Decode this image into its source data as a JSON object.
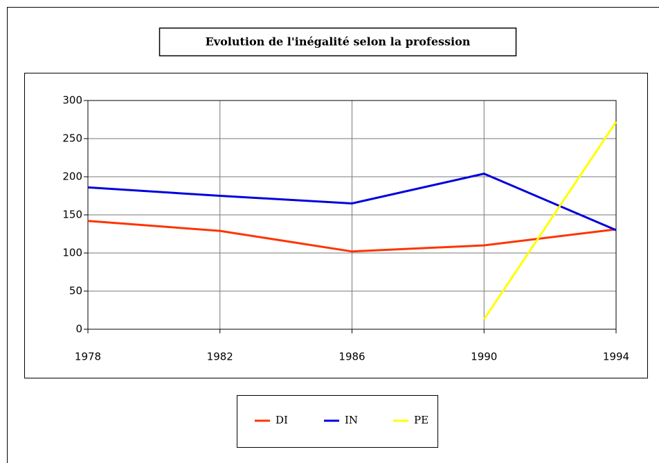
{
  "chart_data": {
    "type": "line",
    "title": "Evolution de l'inégalité selon la profession",
    "x": [
      1978,
      1982,
      1986,
      1990,
      1994
    ],
    "series": [
      {
        "name": "DI",
        "color": "#ff3300",
        "values": [
          142,
          129,
          102,
          110,
          131
        ]
      },
      {
        "name": "IN",
        "color": "#0000dd",
        "values": [
          186,
          175,
          165,
          204,
          130
        ]
      },
      {
        "name": "PE",
        "color": "#ffff00",
        "values": [
          null,
          null,
          null,
          13,
          272
        ]
      }
    ],
    "xlim": [
      1978,
      1994
    ],
    "xticks": [
      1978,
      1982,
      1986,
      1990,
      1994
    ],
    "ylim": [
      0,
      300
    ],
    "yticks": [
      0,
      50,
      100,
      150,
      200,
      250,
      300
    ],
    "grid": true,
    "legend": "bottom"
  }
}
